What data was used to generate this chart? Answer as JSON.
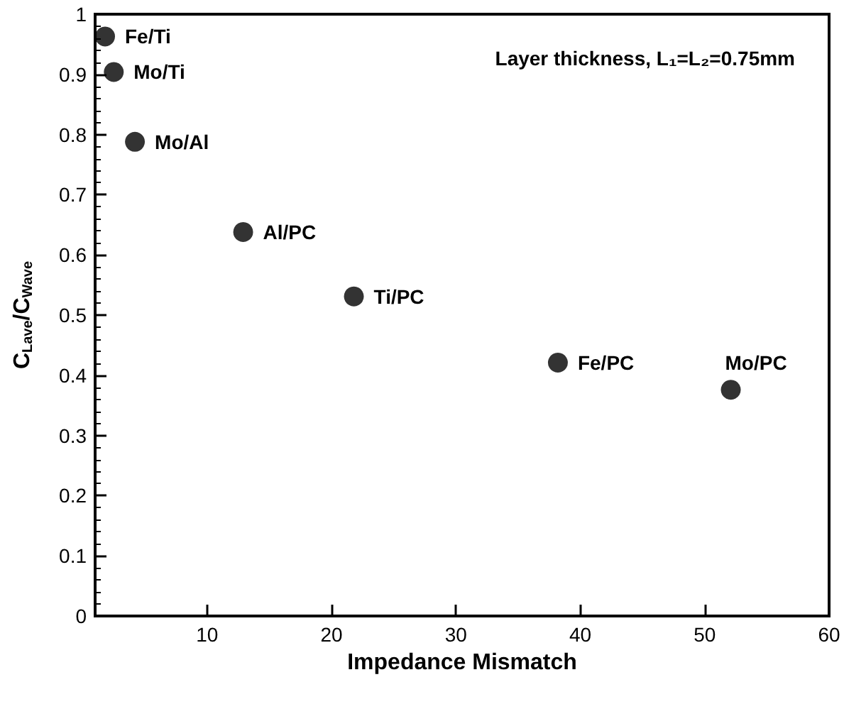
{
  "chart_data": {
    "type": "scatter",
    "xlabel": "Impedance Mismatch",
    "ylabel": "C$_{Lave}$/C$_{Wave}$",
    "x": [
      1.8,
      2.5,
      4.2,
      12.9,
      21.8,
      38.2,
      52.1
    ],
    "series": [
      {
        "color": "#000000",
        "values": [
          0.963,
          0.904,
          0.788,
          0.638,
          0.531,
          0.421,
          0.376
        ]
      }
    ],
    "xlim": [
      1,
      60
    ],
    "xticks": [
      10,
      20,
      30,
      40,
      50,
      60
    ],
    "ylim": [
      0,
      1
    ],
    "yticks": [
      0,
      0.1,
      0.2,
      0.3,
      0.4,
      0.5,
      0.6,
      0.7,
      0.8,
      0.9,
      1
    ],
    "grid": false,
    "marker": "circle",
    "annotations": [
      "Layer thickness, L₁=L₂=0.75mm",
      {
        "text": "Fe/Ti",
        "x": 1.8,
        "y": 0.963
      },
      {
        "text": "Mo/Ti",
        "x": 2.5,
        "y": 0.904
      },
      {
        "text": "Mo/Al",
        "x": 4.2,
        "y": 0.788
      },
      {
        "text": "Al/PC",
        "x": 12.9,
        "y": 0.638
      },
      {
        "text": "Ti/PC",
        "x": 21.8,
        "y": 0.531
      },
      {
        "text": "Fe/PC",
        "x": 38.2,
        "y": 0.421
      },
      {
        "text": "Mo/PC",
        "x": 52.1,
        "y": 0.376
      }
    ]
  }
}
